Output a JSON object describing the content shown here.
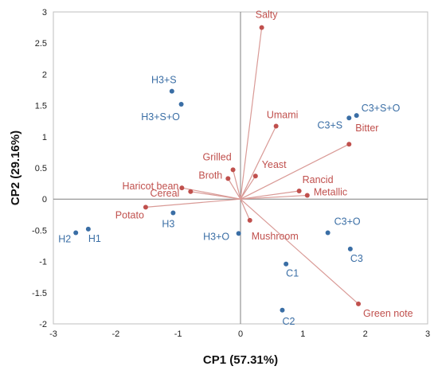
{
  "chart_data": {
    "type": "scatter",
    "xlabel": "CP1 (57.31%)",
    "ylabel": "CP2 (29.16%)",
    "xlim": [
      -3,
      3
    ],
    "ylim": [
      -2,
      3
    ],
    "xticks": [
      "-3",
      "-2",
      "-1",
      "0",
      "1",
      "2",
      "3"
    ],
    "yticks": [
      "-2",
      "-1.5",
      "-1",
      "-0.5",
      "0",
      "0.5",
      "1",
      "1.5",
      "2",
      "2.5",
      "3"
    ],
    "grid": false,
    "colors": {
      "observations": "#3a6ea5",
      "variables": "#c0504d"
    },
    "observations": [
      {
        "label": "H3+S",
        "x": -1.1,
        "y": 1.73
      },
      {
        "label": "H3+S+O",
        "x": -0.95,
        "y": 1.52
      },
      {
        "label": "C3+S",
        "x": 1.74,
        "y": 1.3
      },
      {
        "label": "C3+S+O",
        "x": 1.86,
        "y": 1.34
      },
      {
        "label": "H3",
        "x": -1.08,
        "y": -0.22
      },
      {
        "label": "H2",
        "x": -2.64,
        "y": -0.54
      },
      {
        "label": "H1",
        "x": -2.44,
        "y": -0.48
      },
      {
        "label": "H3+O",
        "x": -0.03,
        "y": -0.55
      },
      {
        "label": "C3+O",
        "x": 1.4,
        "y": -0.54
      },
      {
        "label": "C3",
        "x": 1.76,
        "y": -0.8
      },
      {
        "label": "C1",
        "x": 0.73,
        "y": -1.04
      },
      {
        "label": "C2",
        "x": 0.67,
        "y": -1.78
      }
    ],
    "variables": [
      {
        "label": "Salty",
        "x": 0.34,
        "y": 2.75
      },
      {
        "label": "Umami",
        "x": 0.57,
        "y": 1.17
      },
      {
        "label": "Bitter",
        "x": 1.74,
        "y": 0.88
      },
      {
        "label": "Grilled",
        "x": -0.12,
        "y": 0.47
      },
      {
        "label": "Broth",
        "x": -0.2,
        "y": 0.33
      },
      {
        "label": "Yeast",
        "x": 0.24,
        "y": 0.37
      },
      {
        "label": "Haricot bean",
        "x": -0.94,
        "y": 0.18
      },
      {
        "label": "Cereal",
        "x": -0.8,
        "y": 0.12
      },
      {
        "label": "Rancid",
        "x": 0.94,
        "y": 0.13
      },
      {
        "label": "Metallic",
        "x": 1.07,
        "y": 0.06
      },
      {
        "label": "Potato",
        "x": -1.52,
        "y": -0.13
      },
      {
        "label": "Mushroom",
        "x": 0.15,
        "y": -0.34
      },
      {
        "label": "Green note",
        "x": 1.89,
        "y": -1.68
      }
    ]
  }
}
